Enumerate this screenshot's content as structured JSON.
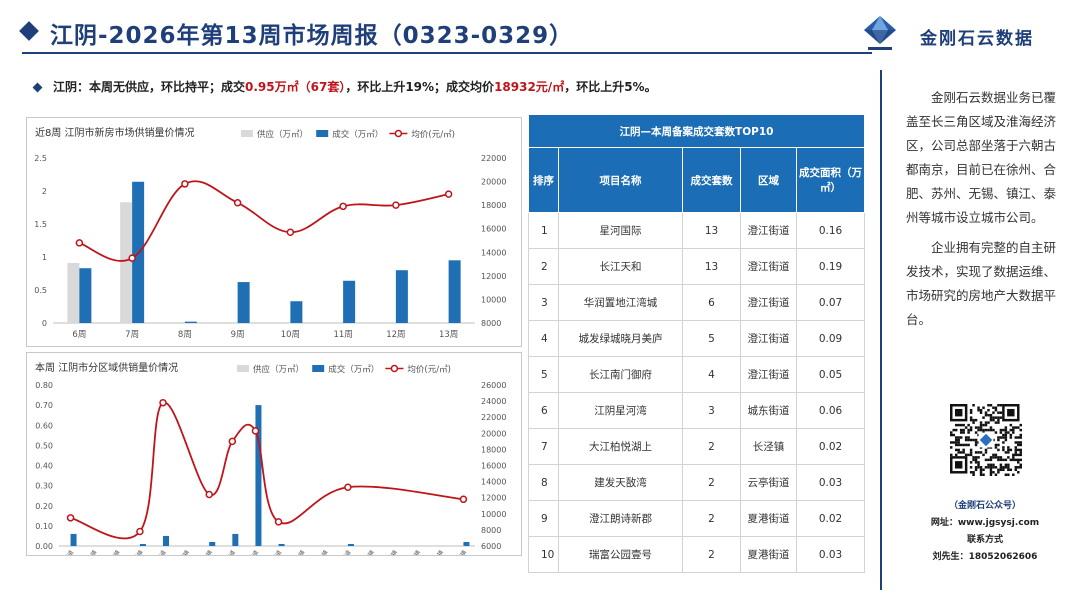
{
  "header": {
    "title": "江阴-2026年第13周市场周报（0323-0329）",
    "brand": "金刚石云数据"
  },
  "summary": {
    "lead": "江阴：本周无供应，环比持平；成交",
    "highlight1": "0.95万㎡（67套）",
    "mid": "，环比上升19%；成交均价",
    "highlight2": "18932元/㎡",
    "tail": "，环比上升5%。"
  },
  "chart_data": [
    {
      "type": "bar",
      "title": "近8周 江阴市新房市场供销量价情况",
      "categories": [
        "6周",
        "7周",
        "8周",
        "9周",
        "10周",
        "11周",
        "12周",
        "13周"
      ],
      "series": [
        {
          "name": "供应（万㎡）",
          "kind": "bar",
          "color": "#d9d9d9",
          "values": [
            0.91,
            1.83,
            0,
            0,
            0,
            0,
            0,
            0
          ]
        },
        {
          "name": "成交（万㎡）",
          "kind": "bar",
          "color": "#1f6fb5",
          "values": [
            0.83,
            2.14,
            0.02,
            0.62,
            0.33,
            0.64,
            0.8,
            0.95
          ]
        },
        {
          "name": "均价(元/㎡)",
          "kind": "line",
          "axis": "right",
          "color": "#c0141b",
          "values": [
            14800,
            13500,
            19800,
            18200,
            15700,
            17900,
            18000,
            18932
          ]
        }
      ],
      "ylim": [
        0,
        2.5
      ],
      "yticks": [
        "0",
        "0.5",
        "1",
        "1.5",
        "2",
        "2.5"
      ],
      "y2lim": [
        8000,
        22000
      ],
      "y2ticks": [
        "8000",
        "10000",
        "12000",
        "14000",
        "16000",
        "18000",
        "20000",
        "22000"
      ],
      "legend": "top-right"
    },
    {
      "type": "bar",
      "title": "本周 江阴市分区域供销量价情况",
      "categories": [
        "夏港街道",
        "华士镇",
        "利港镇",
        "新桥镇",
        "云亭街道",
        "月城镇",
        "长泾镇",
        "城东街道",
        "澄江街道",
        "申港街道",
        "周庄镇",
        "璜土镇",
        "南闸街道",
        "徐霞客镇",
        "青阳镇",
        "祝塘镇",
        "顾山镇",
        "新桥镇"
      ],
      "series": [
        {
          "name": "供应（万㎡）",
          "kind": "bar",
          "color": "#d9d9d9",
          "values": [
            0,
            0,
            0,
            0,
            0,
            0,
            0,
            0,
            0,
            0,
            0,
            0,
            0,
            0,
            0,
            0,
            0,
            0
          ]
        },
        {
          "name": "成交（万㎡）",
          "kind": "bar",
          "color": "#1f6fb5",
          "values": [
            0.06,
            0,
            0,
            0.01,
            0.05,
            0,
            0.02,
            0.06,
            0.7,
            0.01,
            0,
            0,
            0.01,
            0,
            0,
            0,
            0,
            0.02
          ]
        },
        {
          "name": "均价(元/㎡)",
          "kind": "line",
          "axis": "right",
          "color": "#c0141b",
          "values": [
            9500,
            null,
            null,
            7800,
            23800,
            null,
            12400,
            19000,
            20300,
            9000,
            null,
            null,
            13300,
            null,
            null,
            null,
            null,
            11800
          ]
        }
      ],
      "ylim": [
        0,
        0.8
      ],
      "yticks": [
        "0.00",
        "0.10",
        "0.20",
        "0.30",
        "0.40",
        "0.50",
        "0.60",
        "0.70",
        "0.80"
      ],
      "y2lim": [
        6000,
        26000
      ],
      "y2ticks": [
        "6000",
        "8000",
        "10000",
        "12000",
        "14000",
        "16000",
        "18000",
        "20000",
        "22000",
        "24000",
        "26000"
      ],
      "legend": "top-right"
    }
  ],
  "table": {
    "title": "江阴—本周备案成交套数TOP10",
    "headers": [
      "排序",
      "项目名称",
      "成交套数",
      "区域",
      "成交面积（万㎡）"
    ],
    "rows": [
      [
        "1",
        "星河国际",
        "13",
        "澄江街道",
        "0.16"
      ],
      [
        "2",
        "长江天和",
        "13",
        "澄江街道",
        "0.19"
      ],
      [
        "3",
        "华润置地江湾城",
        "6",
        "澄江街道",
        "0.07"
      ],
      [
        "4",
        "城发绿城晓月美庐",
        "5",
        "澄江街道",
        "0.09"
      ],
      [
        "5",
        "长江南门御府",
        "4",
        "澄江街道",
        "0.05"
      ],
      [
        "6",
        "江阴星河湾",
        "3",
        "城东街道",
        "0.06"
      ],
      [
        "7",
        "大江柏悦湖上",
        "2",
        "长泾镇",
        "0.02"
      ],
      [
        "8",
        "建发天敔湾",
        "2",
        "云亭街道",
        "0.03"
      ],
      [
        "9",
        "澄江朗诗新郡",
        "2",
        "夏港街道",
        "0.02"
      ],
      [
        "10",
        "瑞富公园壹号",
        "2",
        "夏港街道",
        "0.03"
      ]
    ]
  },
  "sidebar": {
    "intro1": "金刚石云数据业务已覆盖至长三角区域及淮海经济区，公司总部坐落于六朝古都南京，目前已在徐州、合肥、苏州、无锡、镇江、泰州等城市设立城市公司。",
    "intro2": "企业拥有完整的自主研发技术，实现了数据运维、市场研究的房地产大数据平台。",
    "wechat": "（金刚石公众号）",
    "website_label": "网址：",
    "website": "www.jgsysj.com",
    "contact_label": "联系方式",
    "contact_name": "刘先生：",
    "contact_phone": "18052062606"
  }
}
